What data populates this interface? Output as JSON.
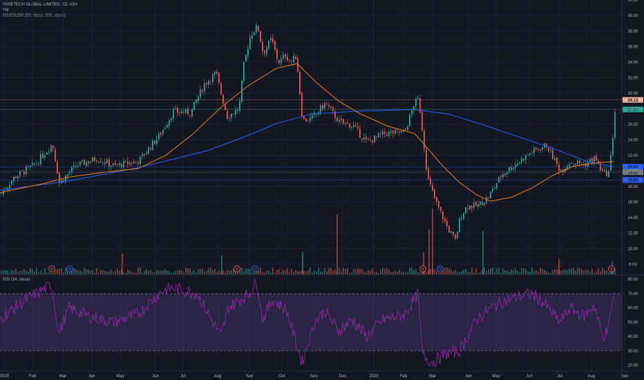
{
  "chart_data": [
    {
      "type": "candlestick",
      "title": "WISETECH GLOBAL LIMITED, 1D, ASX",
      "volume_label": "Vol",
      "ma_label": "MAS0&200 (50, close, 200, close)",
      "y_ticks": [
        "42.00",
        "40.00",
        "38.00",
        "36.00",
        "34.00",
        "32.00",
        "30.00",
        "28.00",
        "26.00",
        "24.00",
        "22.00",
        "20.00",
        "18.00",
        "16.00",
        "14.00",
        "12.00",
        "10.00",
        "8.00"
      ],
      "ylim": [
        7,
        42
      ],
      "price_labels": [
        {
          "value": 29.13,
          "text": "29.13",
          "color": "#f0b3a0"
        },
        {
          "value": 27.9,
          "text": "27.90",
          "color": "#26a69a"
        },
        {
          "value": 20.53,
          "text": "20.53",
          "color": "#2962ff"
        },
        {
          "value": 19.83,
          "text": "19.83",
          "color": "#787b86"
        },
        {
          "value": 18.83,
          "text": "18.83",
          "color": "#2962ff"
        }
      ],
      "anchors": [
        [
          0,
          17.0
        ],
        [
          20,
          19.2
        ],
        [
          50,
          20.8
        ],
        [
          75,
          23.5
        ],
        [
          85,
          18.5
        ],
        [
          110,
          20.7
        ],
        [
          140,
          21.6
        ],
        [
          165,
          20.6
        ],
        [
          200,
          21.3
        ],
        [
          230,
          24.6
        ],
        [
          250,
          27.6
        ],
        [
          275,
          27.5
        ],
        [
          295,
          31.2
        ],
        [
          312,
          32.6
        ],
        [
          320,
          29.6
        ],
        [
          328,
          27.0
        ],
        [
          345,
          28.0
        ],
        [
          352,
          33.6
        ],
        [
          362,
          37.6
        ],
        [
          372,
          38.6
        ],
        [
          380,
          35.1
        ],
        [
          392,
          37.0
        ],
        [
          402,
          33.9
        ],
        [
          412,
          34.9
        ],
        [
          420,
          34.0
        ],
        [
          428,
          34.8
        ],
        [
          432,
          31.0
        ],
        [
          437,
          26.5
        ],
        [
          450,
          26.7
        ],
        [
          470,
          28.7
        ],
        [
          490,
          26.3
        ],
        [
          510,
          25.8
        ],
        [
          530,
          23.7
        ],
        [
          555,
          24.8
        ],
        [
          585,
          25.0
        ],
        [
          598,
          28.5
        ],
        [
          605,
          29.3
        ],
        [
          612,
          24.0
        ],
        [
          618,
          19.0
        ],
        [
          630,
          16.0
        ],
        [
          645,
          13.0
        ],
        [
          658,
          11.0
        ],
        [
          665,
          14.0
        ],
        [
          675,
          15.5
        ],
        [
          690,
          15.5
        ],
        [
          705,
          16.5
        ],
        [
          725,
          19.5
        ],
        [
          750,
          21.2
        ],
        [
          770,
          22.5
        ],
        [
          790,
          23.3
        ],
        [
          810,
          20.0
        ],
        [
          825,
          21.2
        ],
        [
          845,
          20.8
        ],
        [
          860,
          21.7
        ],
        [
          872,
          19.6
        ],
        [
          880,
          19.8
        ],
        [
          885,
          23.0
        ],
        [
          888,
          27.4
        ],
        [
          890,
          28.0
        ]
      ],
      "ma50": [
        [
          0,
          17.2
        ],
        [
          60,
          18.3
        ],
        [
          100,
          19.2
        ],
        [
          150,
          19.8
        ],
        [
          200,
          20.3
        ],
        [
          240,
          22.0
        ],
        [
          280,
          24.8
        ],
        [
          320,
          28.2
        ],
        [
          360,
          31.0
        ],
        [
          400,
          33.2
        ],
        [
          430,
          33.8
        ],
        [
          460,
          31.2
        ],
        [
          490,
          29.0
        ],
        [
          520,
          27.4
        ],
        [
          560,
          25.8
        ],
        [
          600,
          24.8
        ],
        [
          615,
          23.3
        ],
        [
          640,
          20.7
        ],
        [
          665,
          18.5
        ],
        [
          690,
          16.9
        ],
        [
          710,
          16.1
        ],
        [
          740,
          16.6
        ],
        [
          770,
          17.8
        ],
        [
          800,
          19.4
        ],
        [
          830,
          20.6
        ],
        [
          860,
          21.0
        ],
        [
          888,
          21.2
        ]
      ],
      "ma200": [
        [
          0,
          17.5
        ],
        [
          100,
          18.7
        ],
        [
          200,
          20.4
        ],
        [
          300,
          22.6
        ],
        [
          360,
          24.6
        ],
        [
          400,
          26.1
        ],
        [
          450,
          27.3
        ],
        [
          520,
          27.7
        ],
        [
          600,
          27.9
        ],
        [
          650,
          27.3
        ],
        [
          700,
          25.9
        ],
        [
          750,
          24.4
        ],
        [
          800,
          22.9
        ],
        [
          850,
          21.2
        ],
        [
          888,
          20.5
        ]
      ],
      "volume_spikes": [
        [
          176,
          11
        ],
        [
          487,
          32
        ],
        [
          320,
          10
        ],
        [
          437,
          12
        ],
        [
          612,
          12
        ],
        [
          620,
          24
        ],
        [
          625,
          35
        ],
        [
          698,
          23
        ],
        [
          808,
          8
        ],
        [
          885,
          7
        ]
      ],
      "event_markers": [
        {
          "x": 75,
          "text": "E"
        },
        {
          "x": 101,
          "text": "D"
        },
        {
          "x": 343,
          "text": "E"
        },
        {
          "x": 369,
          "text": "D"
        },
        {
          "x": 612,
          "text": "E"
        },
        {
          "x": 637,
          "text": "D"
        },
        {
          "x": 885,
          "text": "E"
        }
      ]
    },
    {
      "type": "line",
      "title": "RSI (14, close)",
      "y_ticks": [
        "80.00",
        "70.00",
        "60.00",
        "50.00",
        "40.00",
        "30.00",
        "20.00"
      ],
      "ylim": [
        16,
        83
      ],
      "upper_band": 70,
      "lower_band": 30,
      "anchors": [
        [
          0,
          52
        ],
        [
          20,
          60
        ],
        [
          45,
          68
        ],
        [
          75,
          76
        ],
        [
          85,
          42
        ],
        [
          100,
          60
        ],
        [
          130,
          54
        ],
        [
          165,
          50
        ],
        [
          200,
          56
        ],
        [
          235,
          72
        ],
        [
          250,
          74
        ],
        [
          285,
          70
        ],
        [
          320,
          40
        ],
        [
          330,
          60
        ],
        [
          360,
          70
        ],
        [
          372,
          78
        ],
        [
          380,
          52
        ],
        [
          395,
          66
        ],
        [
          415,
          58
        ],
        [
          432,
          30
        ],
        [
          437,
          22
        ],
        [
          455,
          50
        ],
        [
          470,
          58
        ],
        [
          490,
          44
        ],
        [
          510,
          52
        ],
        [
          530,
          40
        ],
        [
          555,
          52
        ],
        [
          585,
          55
        ],
        [
          605,
          70
        ],
        [
          611,
          28
        ],
        [
          625,
          22
        ],
        [
          645,
          28
        ],
        [
          665,
          30
        ],
        [
          690,
          52
        ],
        [
          705,
          58
        ],
        [
          725,
          64
        ],
        [
          750,
          68
        ],
        [
          770,
          70
        ],
        [
          790,
          62
        ],
        [
          810,
          50
        ],
        [
          825,
          60
        ],
        [
          845,
          54
        ],
        [
          860,
          62
        ],
        [
          872,
          40
        ],
        [
          880,
          44
        ],
        [
          885,
          62
        ],
        [
          890,
          72
        ]
      ]
    }
  ],
  "x_axis": {
    "ticks": [
      "2019",
      "Feb",
      "Mar",
      "Apr",
      "May",
      "Jun",
      "Jul",
      "Aug",
      "Sep",
      "Oct",
      "Nov",
      "Dec",
      "2020",
      "Feb",
      "Mar",
      "Apr",
      "May",
      "Jun",
      "Jul",
      "Aug",
      "Sep"
    ],
    "positions": [
      6,
      47,
      91,
      133,
      174,
      225,
      265,
      315,
      361,
      408,
      454,
      496,
      541,
      584,
      626,
      678,
      718,
      766,
      810,
      856,
      904
    ]
  },
  "colors": {
    "background": "#131722",
    "up": "#26a69a",
    "down": "#ef5350",
    "ma50": "#f57f17",
    "ma200": "#2962ff",
    "rsi": "#9c27b0",
    "grid": "#1f2330",
    "axis_text": "#b2b5be"
  }
}
